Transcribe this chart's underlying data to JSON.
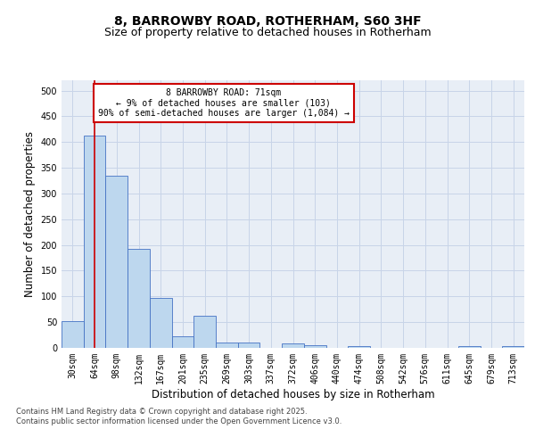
{
  "title1": "8, BARROWBY ROAD, ROTHERHAM, S60 3HF",
  "title2": "Size of property relative to detached houses in Rotherham",
  "xlabel": "Distribution of detached houses by size in Rotherham",
  "ylabel": "Number of detached properties",
  "categories": [
    "30sqm",
    "64sqm",
    "98sqm",
    "132sqm",
    "167sqm",
    "201sqm",
    "235sqm",
    "269sqm",
    "303sqm",
    "337sqm",
    "372sqm",
    "406sqm",
    "440sqm",
    "474sqm",
    "508sqm",
    "542sqm",
    "576sqm",
    "611sqm",
    "645sqm",
    "679sqm",
    "713sqm"
  ],
  "values": [
    52,
    413,
    335,
    192,
    97,
    22,
    63,
    11,
    10,
    0,
    8,
    5,
    0,
    3,
    0,
    0,
    0,
    0,
    3,
    0,
    3
  ],
  "bar_color": "#bdd7ee",
  "bar_edge_color": "#4472c4",
  "vline_x": 1,
  "vline_color": "#cc0000",
  "annotation_text": "8 BARROWBY ROAD: 71sqm\n← 9% of detached houses are smaller (103)\n90% of semi-detached houses are larger (1,084) →",
  "annotation_box_color": "#ffffff",
  "annotation_box_edge": "#cc0000",
  "grid_color": "#c8d4e8",
  "background_color": "#e8eef6",
  "ylim": [
    0,
    520
  ],
  "yticks": [
    0,
    50,
    100,
    150,
    200,
    250,
    300,
    350,
    400,
    450,
    500
  ],
  "footer": "Contains HM Land Registry data © Crown copyright and database right 2025.\nContains public sector information licensed under the Open Government Licence v3.0.",
  "title_fontsize": 10,
  "subtitle_fontsize": 9,
  "tick_fontsize": 7,
  "label_fontsize": 8.5,
  "footer_fontsize": 6
}
